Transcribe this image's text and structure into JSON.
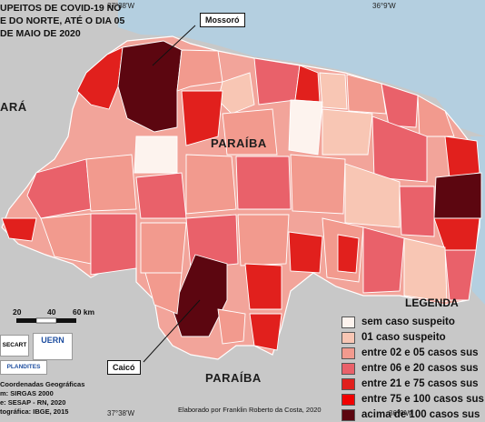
{
  "title_lines": [
    "UPEITOS DE COVID-19 NO",
    "E DO NORTE, ATÉ O DIA 05",
    "DE MAIO DE 2020"
  ],
  "coords": {
    "top_left": "37°38'W",
    "top_right": "36°9'W",
    "bottom_left": "37°38'W",
    "bottom_right": "36°9'W"
  },
  "states": {
    "west": "ARÁ",
    "south": "PARAÍBA",
    "south_left": "PARAÍBA"
  },
  "callouts": {
    "north": "Mossoró",
    "south": "Caicó"
  },
  "legend": {
    "title": "LEGENDA",
    "items": [
      {
        "label": "sem caso suspeito",
        "color": "#fdf3ee"
      },
      {
        "label": "01 caso suspeito",
        "color": "#f8c6b4"
      },
      {
        "label": "entre 02 e 05 casos sus",
        "color": "#f29a8e"
      },
      {
        "label": "entre 06 e 20 casos sus",
        "color": "#e9616a"
      },
      {
        "label": "entre 21 e 75 casos sus",
        "color": "#e1201d"
      },
      {
        "label": "entre 75 e 100 casos sus",
        "color": "#f00000"
      },
      {
        "label": "acima de 100 casos sus",
        "color": "#5c0610"
      }
    ]
  },
  "scale": {
    "labels": [
      "40",
      "60 km"
    ],
    "left_labels": [
      "20"
    ]
  },
  "credit": "Elaborado por Franklin Roberto da Costa, 2020",
  "footnotes": [
    "Coordenadas Geográficas",
    "m: SIRGAS 2000",
    "e: SESAP - RN, 2020",
    "tográfica: IBGE, 2015"
  ],
  "logos": {
    "uern": "UERN",
    "plandites": "PLANDITES",
    "secart": "SECART"
  }
}
